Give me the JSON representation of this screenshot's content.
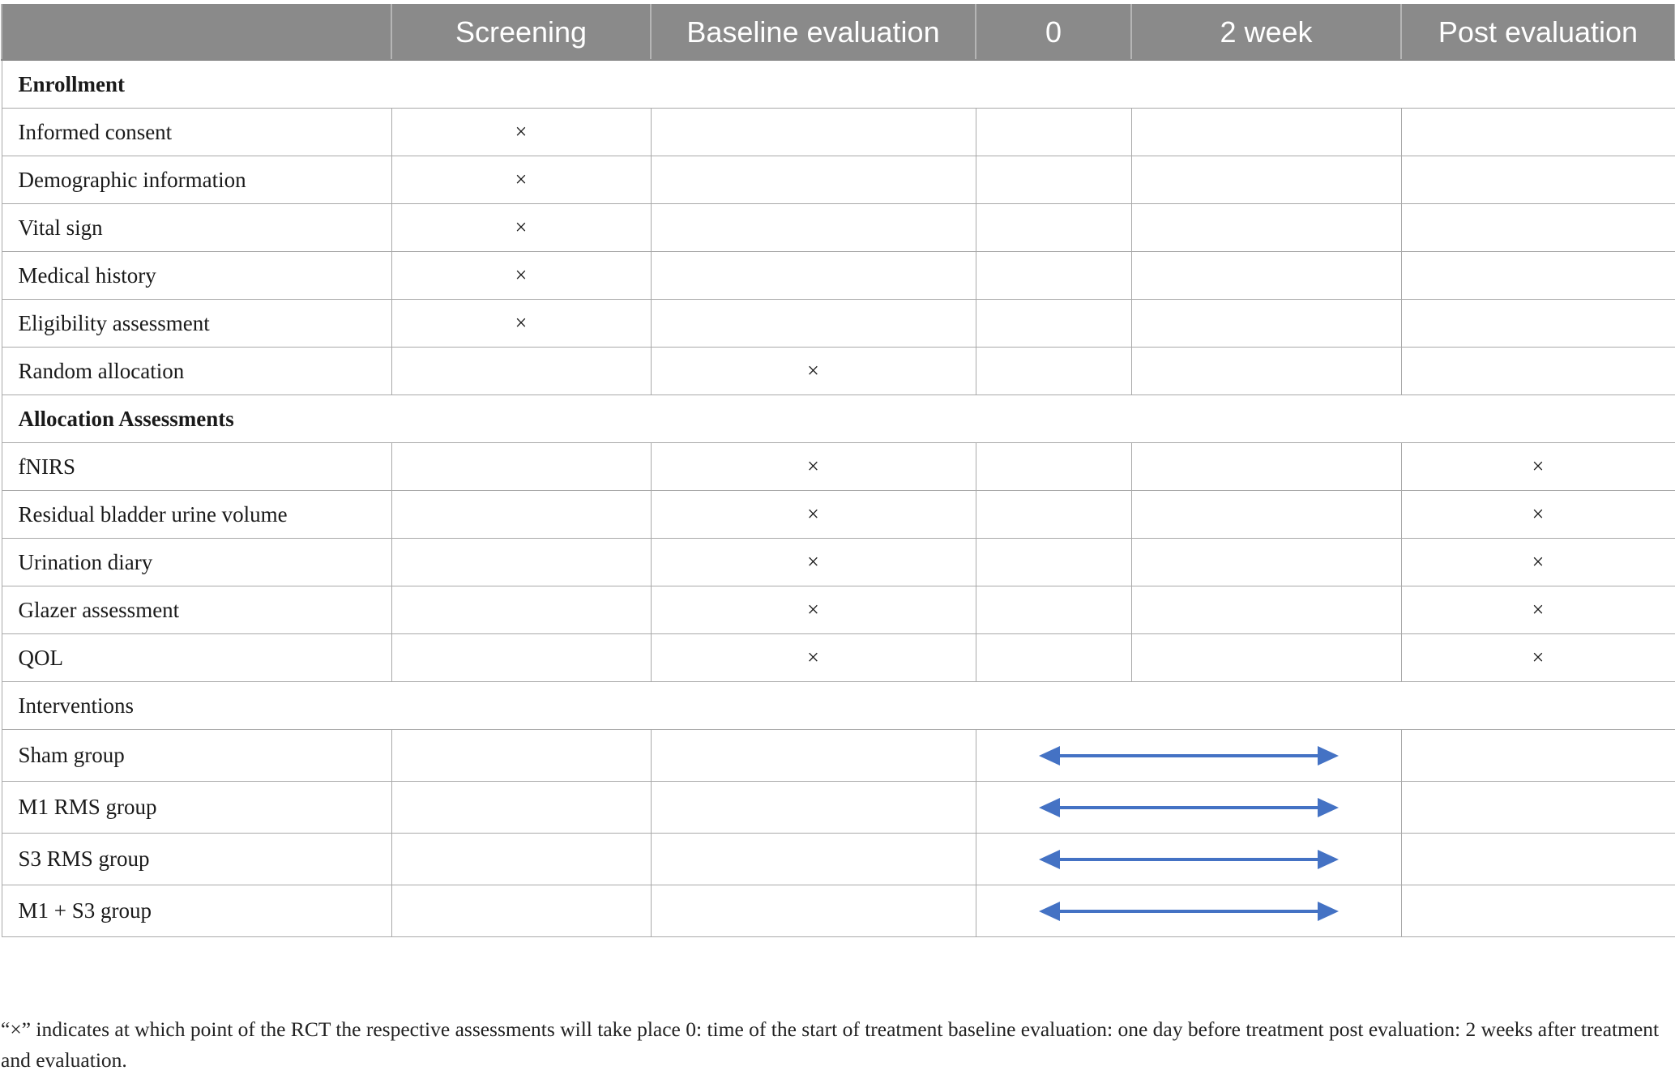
{
  "header": {
    "col0": "",
    "col1": "Screening",
    "col2": "Baseline evaluation",
    "col3": "0",
    "col4": "2 week",
    "col5": "Post evaluation"
  },
  "sections": {
    "enrollment": "Enrollment",
    "allocation": "Allocation Assessments",
    "interventions": "Interventions"
  },
  "mark_symbol": "×",
  "enrollment_rows": [
    {
      "label": "Informed consent",
      "marks": [
        "×",
        "",
        "",
        "",
        ""
      ]
    },
    {
      "label": "Demographic information",
      "marks": [
        "×",
        "",
        "",
        "",
        ""
      ]
    },
    {
      "label": "Vital sign",
      "marks": [
        "×",
        "",
        "",
        "",
        ""
      ]
    },
    {
      "label": "Medical history",
      "marks": [
        "×",
        "",
        "",
        "",
        ""
      ]
    },
    {
      "label": "Eligibility assessment",
      "marks": [
        "×",
        "",
        "",
        "",
        ""
      ]
    },
    {
      "label": "Random allocation",
      "marks": [
        "",
        "×",
        "",
        "",
        ""
      ]
    }
  ],
  "allocation_rows": [
    {
      "label": "fNIRS",
      "marks": [
        "",
        "×",
        "",
        "",
        "×"
      ]
    },
    {
      "label": "Residual bladder urine volume",
      "marks": [
        "",
        "×",
        "",
        "",
        "×"
      ]
    },
    {
      "label": "Urination diary",
      "marks": [
        "",
        "×",
        "",
        "",
        "×"
      ]
    },
    {
      "label": "Glazer assessment",
      "marks": [
        "",
        "×",
        "",
        "",
        "×"
      ]
    },
    {
      "label": "QOL",
      "marks": [
        "",
        "×",
        "",
        "",
        "×"
      ]
    }
  ],
  "intervention_rows": [
    {
      "label": "Sham group"
    },
    {
      "label": "M1 RMS group"
    },
    {
      "label": "S3 RMS group"
    },
    {
      "label": "M1 + S3 group"
    }
  ],
  "arrow_color": "#4472c4",
  "footnote": "“×” indicates at which point of the RCT the respective assessments will take place 0: time of the start of treatment baseline evaluation: one day before treatment post evaluation: 2 weeks after treatment and evaluation."
}
